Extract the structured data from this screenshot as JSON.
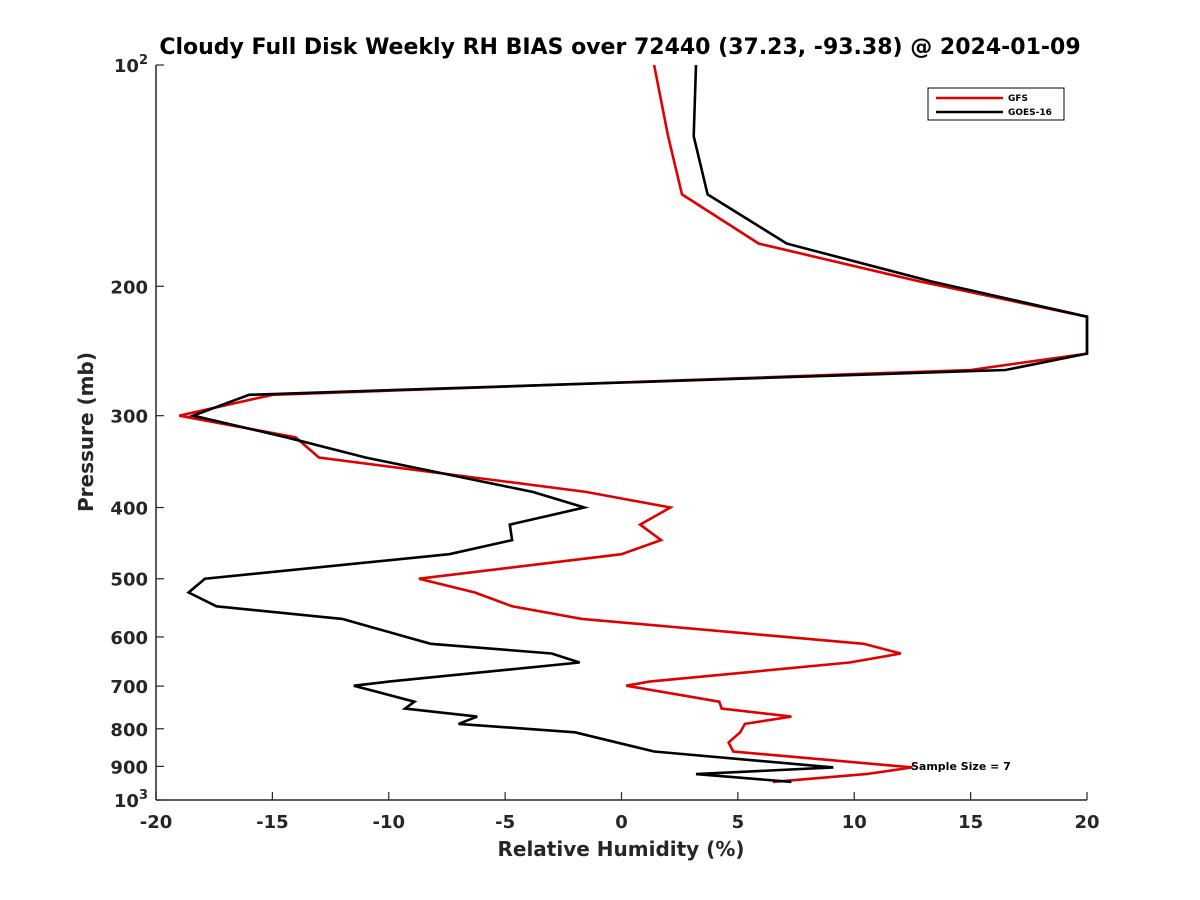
{
  "chart_data": {
    "type": "line",
    "title": "Cloudy Full Disk Weekly RH BIAS over 72440 (37.23, -93.38) @ 2024-01-09",
    "xlabel": "Relative Humidity (%)",
    "ylabel": "Pressure (mb)",
    "xlim": [
      -20,
      20
    ],
    "ylim": [
      100,
      1000
    ],
    "y_scale": "log",
    "y_reversed": true,
    "x_ticks": [
      -20,
      -15,
      -10,
      -5,
      0,
      5,
      10,
      15,
      20
    ],
    "y_ticks": [
      {
        "value": 100,
        "base": "10",
        "exp": "2"
      },
      {
        "value": 200,
        "label": "200"
      },
      {
        "value": 300,
        "label": "300"
      },
      {
        "value": 400,
        "label": "400"
      },
      {
        "value": 500,
        "label": "500"
      },
      {
        "value": 600,
        "label": "600"
      },
      {
        "value": 700,
        "label": "700"
      },
      {
        "value": 800,
        "label": "800"
      },
      {
        "value": 900,
        "label": "900"
      },
      {
        "value": 1000,
        "base": "10",
        "exp": "3"
      }
    ],
    "grid": false,
    "legend_position": "top-right",
    "annotation": "Sample Size = 7",
    "series": [
      {
        "name": "GFS",
        "color": "#e00000",
        "points": [
          [
            1.4,
            100
          ],
          [
            2.0,
            125
          ],
          [
            2.6,
            150
          ],
          [
            5.9,
            175
          ],
          [
            12.8,
            197
          ],
          [
            20.0,
            220
          ],
          [
            20.0,
            247
          ],
          [
            15.0,
            260
          ],
          [
            -15.0,
            281
          ],
          [
            -19.0,
            300
          ],
          [
            -14.0,
            321
          ],
          [
            -13.0,
            342
          ],
          [
            -1.5,
            381
          ],
          [
            2.1,
            400
          ],
          [
            0.8,
            422
          ],
          [
            1.7,
            443
          ],
          [
            0.0,
            463
          ],
          [
            -8.7,
            500
          ],
          [
            -6.3,
            522
          ],
          [
            -4.7,
            545
          ],
          [
            -1.7,
            567
          ],
          [
            10.4,
            613
          ],
          [
            12.0,
            632
          ],
          [
            9.8,
            650
          ],
          [
            1.2,
            690
          ],
          [
            0.2,
            699
          ],
          [
            4.2,
            735
          ],
          [
            4.3,
            751
          ],
          [
            7.3,
            770
          ],
          [
            5.3,
            788
          ],
          [
            5.1,
            809
          ],
          [
            4.6,
            835
          ],
          [
            4.8,
            859
          ],
          [
            12.5,
            903
          ],
          [
            10.5,
            922
          ],
          [
            6.5,
            945
          ]
        ]
      },
      {
        "name": "GOES-16",
        "color": "#000000",
        "points": [
          [
            3.2,
            100
          ],
          [
            3.1,
            125
          ],
          [
            3.7,
            150
          ],
          [
            7.1,
            175
          ],
          [
            13.3,
            197
          ],
          [
            20.0,
            220
          ],
          [
            20.0,
            247
          ],
          [
            16.5,
            260
          ],
          [
            -16.0,
            281
          ],
          [
            -18.4,
            300
          ],
          [
            -14.4,
            321
          ],
          [
            -11.0,
            342
          ],
          [
            -3.8,
            381
          ],
          [
            -1.6,
            400
          ],
          [
            -4.8,
            422
          ],
          [
            -4.7,
            443
          ],
          [
            -7.4,
            463
          ],
          [
            -17.9,
            500
          ],
          [
            -18.6,
            522
          ],
          [
            -17.4,
            545
          ],
          [
            -12.0,
            567
          ],
          [
            -8.2,
            613
          ],
          [
            -3.0,
            632
          ],
          [
            -1.8,
            650
          ],
          [
            -10.0,
            690
          ],
          [
            -11.5,
            699
          ],
          [
            -8.9,
            735
          ],
          [
            -9.3,
            751
          ],
          [
            -6.2,
            770
          ],
          [
            -7.0,
            788
          ],
          [
            -2.0,
            809
          ],
          [
            1.4,
            859
          ],
          [
            9.1,
            903
          ],
          [
            3.2,
            922
          ],
          [
            7.3,
            945
          ]
        ]
      }
    ]
  }
}
